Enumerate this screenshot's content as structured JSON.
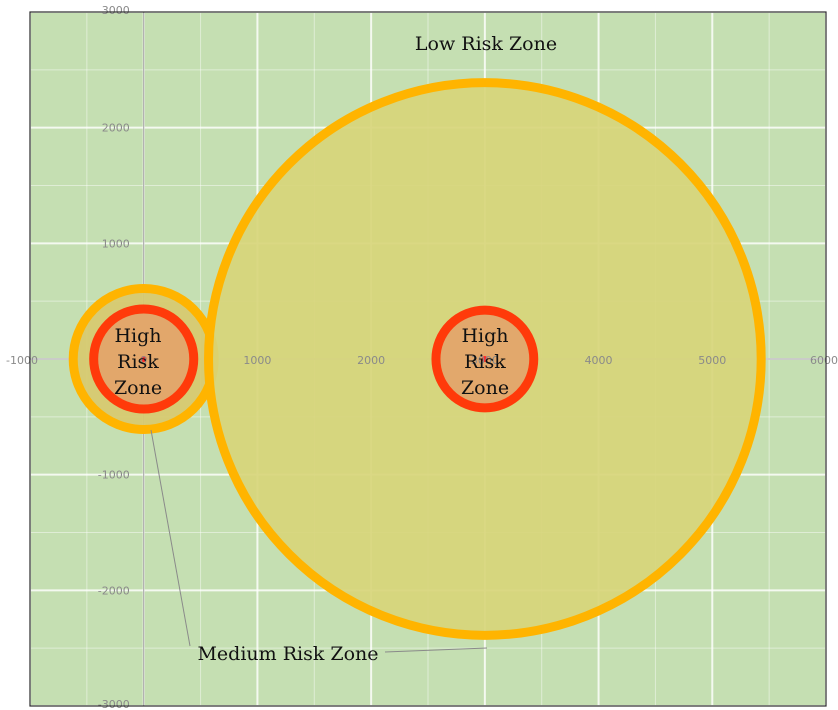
{
  "chart_data": {
    "type": "scatter",
    "title": "",
    "xlabel": "",
    "ylabel": "",
    "xlim": [
      -1000,
      6000
    ],
    "ylim": [
      -3000,
      3000
    ],
    "grid": true,
    "x_ticks": [
      "-1000",
      "0",
      "1000",
      "2000",
      "3000",
      "4000",
      "5000",
      "6000"
    ],
    "y_ticks": [
      "3000",
      "2000",
      "1000",
      "-1000",
      "-2000",
      "-3000"
    ],
    "background_color": "#c5dfb2",
    "zones": [
      {
        "name": "left-medium-zone",
        "center": [
          0,
          0
        ],
        "radius": 620,
        "fill": "#d7c96f",
        "stroke": "#ffb400"
      },
      {
        "name": "left-high-zone",
        "center": [
          0,
          0
        ],
        "radius": 440,
        "fill": "#e3a46a",
        "stroke": "#ff3a0a"
      },
      {
        "name": "right-medium-zone",
        "center": [
          3000,
          0
        ],
        "radius": 2430,
        "fill": "#d7d57a",
        "stroke": "#ffb400"
      },
      {
        "name": "right-high-zone",
        "center": [
          3000,
          0
        ],
        "radius": 430,
        "fill": "#e3a46a",
        "stroke": "#ff3a0a"
      }
    ],
    "points": [
      {
        "x": 0,
        "y": 0,
        "color": "#ff2a2a"
      },
      {
        "x": 3000,
        "y": 0,
        "color": "#ff2a2a"
      }
    ],
    "labels": {
      "low_risk": "Low Risk Zone",
      "medium_risk": "Medium Risk Zone",
      "high_left": [
        "High",
        "Risk",
        "Zone"
      ],
      "high_right": [
        "High",
        "Risk",
        "Zone"
      ]
    }
  }
}
